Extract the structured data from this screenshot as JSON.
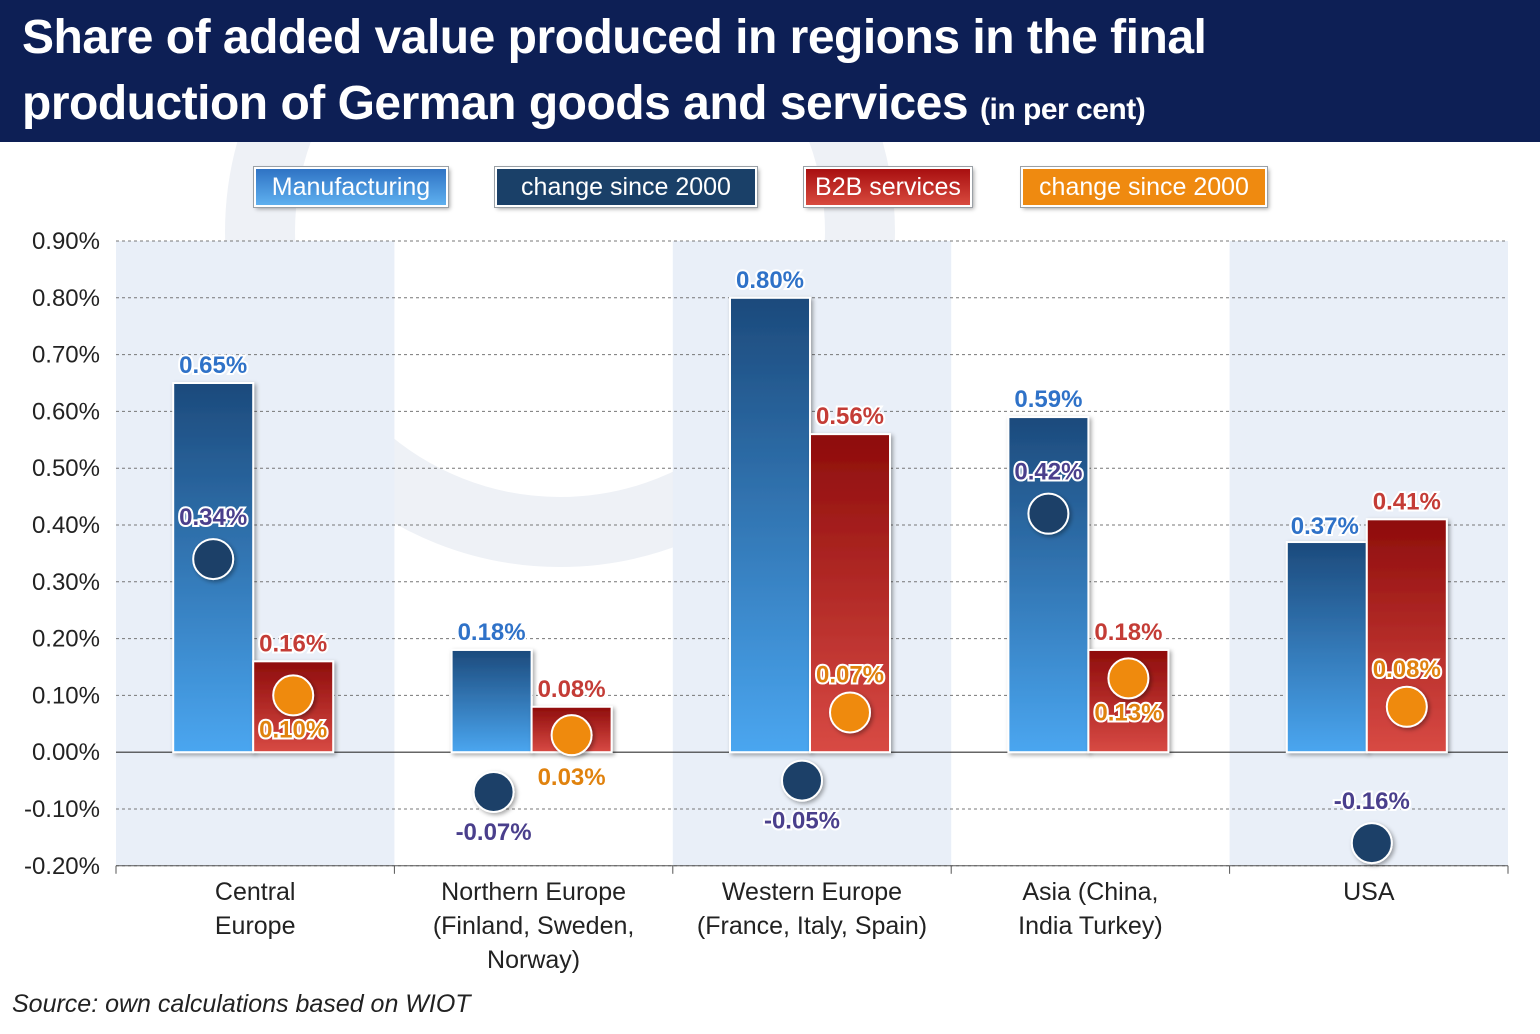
{
  "title": {
    "line1": "Share of added value produced in regions in the final",
    "line2": "production of German goods and services",
    "unit": "(in per cent)"
  },
  "legend": {
    "manufacturing": "Manufacturing",
    "manufacturing_change": "change since 2000",
    "b2b": "B2B services",
    "b2b_change": "change since 2000"
  },
  "source": "Source: own calculations based on WIOT",
  "colors": {
    "manufacturing": "#3f8fdc",
    "manufacturing_change": "#1a4068",
    "b2b": "#c42a22",
    "b2b_change": "#ef8a10",
    "label_blue": "#2f72c8",
    "label_red": "#c43c36",
    "label_purple": "#4a3f8c",
    "label_orange": "#e0820e",
    "band": "#e9eff8"
  },
  "chart_data": {
    "type": "bar",
    "categories": [
      [
        "Central",
        "Europe"
      ],
      [
        "Northern Europe",
        "(Finland, Sweden,",
        "Norway)"
      ],
      [
        "Western Europe",
        "(France, Italy, Spain)"
      ],
      [
        "Asia (China,",
        "India Turkey)"
      ],
      [
        "USA"
      ]
    ],
    "ylim": [
      -0.2,
      0.9
    ],
    "yticks": [
      "0.90%",
      "0.80%",
      "0.70%",
      "0.60%",
      "0.50%",
      "0.40%",
      "0.30%",
      "0.20%",
      "0.10%",
      "0.00%",
      "-0.10%",
      "-0.20%"
    ],
    "grid": true,
    "legend_position": "top",
    "series": [
      {
        "name": "Manufacturing",
        "kind": "bar",
        "values": [
          0.65,
          0.18,
          0.8,
          0.59,
          0.37
        ],
        "labels": [
          "0.65%",
          "0.18%",
          "0.80%",
          "0.59%",
          "0.37%"
        ]
      },
      {
        "name": "B2B services",
        "kind": "bar",
        "values": [
          0.16,
          0.08,
          0.56,
          0.18,
          0.41
        ],
        "labels": [
          "0.16%",
          "0.08%",
          "0.56%",
          "0.18%",
          "0.41%"
        ]
      },
      {
        "name": "change since 2000",
        "kind": "marker",
        "of": "Manufacturing",
        "values": [
          0.34,
          -0.07,
          -0.05,
          0.42,
          -0.16
        ],
        "labels": [
          "0.34%",
          "-0.07%",
          "-0.05%",
          "0.42%",
          "-0.16%"
        ]
      },
      {
        "name": "change since 2000",
        "kind": "marker",
        "of": "B2B services",
        "values": [
          0.1,
          0.03,
          0.07,
          0.13,
          0.08
        ],
        "labels": [
          "0.10%",
          "0.03%",
          "0.07%",
          "0.13%",
          "0.08%"
        ]
      }
    ]
  }
}
